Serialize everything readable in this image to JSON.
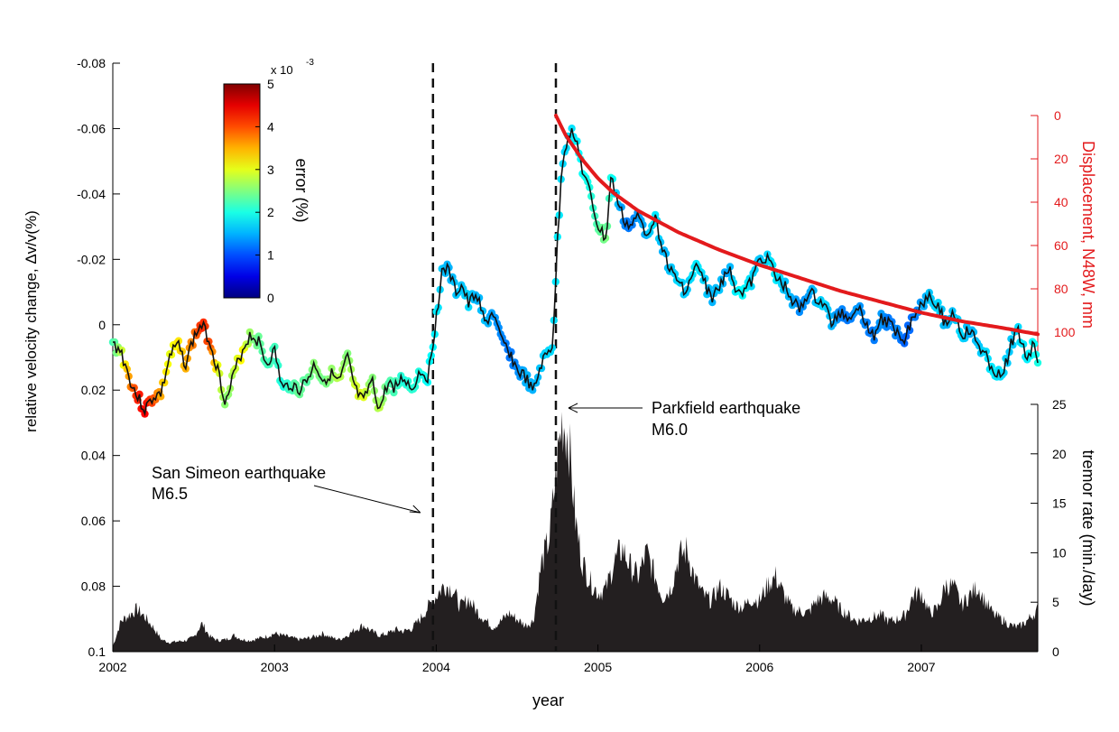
{
  "chart_data": {
    "type": "line",
    "xlabel": "year",
    "x_ticks": [
      "2002",
      "2003",
      "2004",
      "2005",
      "2006",
      "2007"
    ],
    "xlim": [
      2002.0,
      2007.72
    ],
    "left_axis": {
      "label": "relative velocity change, Δv/v(%)",
      "ylim": [
        -0.08,
        0.1
      ],
      "reversed": true,
      "ticks": [
        "-0.08",
        "-0.06",
        "-0.04",
        "-0.02",
        "0",
        "0.02",
        "0.04",
        "0.06",
        "0.08",
        "0.1"
      ]
    },
    "right_axis_displacement": {
      "label": "Displacement, N48W, mm",
      "color": "#e31a1c",
      "ylim": [
        0,
        110
      ],
      "ticks": [
        "0",
        "20",
        "40",
        "60",
        "80",
        "100"
      ]
    },
    "right_axis_tremor": {
      "label": "tremor rate (min./day)",
      "ylim": [
        0,
        25
      ],
      "ticks": [
        "0",
        "5",
        "10",
        "15",
        "20",
        "25"
      ]
    },
    "colorbar": {
      "label": "error (%)",
      "exponent": "x 10",
      "exponent_power": "-3",
      "range": [
        0,
        5
      ],
      "ticks": [
        "0",
        "1",
        "2",
        "3",
        "4",
        "5"
      ]
    },
    "annotations": [
      {
        "text": "San Simeon earthquake",
        "sub": "M6.5",
        "x": 2003.98
      },
      {
        "text": "Parkfield earthquake",
        "sub": "M6.0",
        "x": 2004.74
      }
    ],
    "series": [
      {
        "role": "velocity",
        "axis": "left",
        "color": "#111111",
        "points": [
          [
            2002.0,
            0.006,
            2.2
          ],
          [
            2002.05,
            0.008,
            2.8
          ],
          [
            2002.1,
            0.016,
            3.6
          ],
          [
            2002.15,
            0.022,
            4.2
          ],
          [
            2002.2,
            0.026,
            4.4
          ],
          [
            2002.25,
            0.022,
            4.0
          ],
          [
            2002.3,
            0.021,
            3.5
          ],
          [
            2002.35,
            0.01,
            3.0
          ],
          [
            2002.4,
            0.006,
            3.2
          ],
          [
            2002.45,
            0.012,
            3.5
          ],
          [
            2002.5,
            0.004,
            3.8
          ],
          [
            2002.55,
            0.0,
            4.2
          ],
          [
            2002.6,
            0.005,
            4.0
          ],
          [
            2002.65,
            0.014,
            3.0
          ],
          [
            2002.7,
            0.024,
            2.5
          ],
          [
            2002.75,
            0.015,
            2.8
          ],
          [
            2002.8,
            0.008,
            3.2
          ],
          [
            2002.85,
            0.003,
            2.6
          ],
          [
            2002.9,
            0.005,
            2.4
          ],
          [
            2002.95,
            0.012,
            2.2
          ],
          [
            2003.0,
            0.008,
            2.2
          ],
          [
            2003.05,
            0.02,
            2.0
          ],
          [
            2003.1,
            0.018,
            2.2
          ],
          [
            2003.15,
            0.02,
            2.4
          ],
          [
            2003.2,
            0.017,
            2.3
          ],
          [
            2003.25,
            0.012,
            2.6
          ],
          [
            2003.3,
            0.017,
            2.4
          ],
          [
            2003.35,
            0.015,
            2.6
          ],
          [
            2003.4,
            0.018,
            2.8
          ],
          [
            2003.45,
            0.01,
            2.5
          ],
          [
            2003.5,
            0.02,
            2.9
          ],
          [
            2003.55,
            0.024,
            3.0
          ],
          [
            2003.6,
            0.017,
            2.5
          ],
          [
            2003.65,
            0.026,
            2.8
          ],
          [
            2003.7,
            0.018,
            2.3
          ],
          [
            2003.75,
            0.019,
            2.2
          ],
          [
            2003.8,
            0.016,
            2.0
          ],
          [
            2003.85,
            0.02,
            2.1
          ],
          [
            2003.9,
            0.014,
            2.0
          ],
          [
            2003.95,
            0.016,
            1.9
          ],
          [
            2004.0,
            -0.002,
            1.8
          ],
          [
            2004.04,
            -0.018,
            1.6
          ],
          [
            2004.08,
            -0.016,
            1.5
          ],
          [
            2004.12,
            -0.01,
            1.6
          ],
          [
            2004.16,
            -0.012,
            1.6
          ],
          [
            2004.2,
            -0.006,
            1.7
          ],
          [
            2004.25,
            -0.01,
            1.5
          ],
          [
            2004.3,
            0.0,
            1.6
          ],
          [
            2004.35,
            -0.004,
            1.4
          ],
          [
            2004.4,
            0.005,
            1.3
          ],
          [
            2004.45,
            0.008,
            1.2
          ],
          [
            2004.5,
            0.014,
            1.3
          ],
          [
            2004.55,
            0.016,
            1.5
          ],
          [
            2004.6,
            0.021,
            1.5
          ],
          [
            2004.65,
            0.012,
            1.6
          ],
          [
            2004.7,
            0.008,
            1.7
          ],
          [
            2004.72,
            0.006,
            1.7
          ],
          [
            2004.75,
            -0.025,
            1.8
          ],
          [
            2004.78,
            -0.05,
            1.7
          ],
          [
            2004.82,
            -0.059,
            1.7
          ],
          [
            2004.86,
            -0.058,
            1.8
          ],
          [
            2004.9,
            -0.048,
            1.9
          ],
          [
            2004.95,
            -0.04,
            2.0
          ],
          [
            2005.0,
            -0.03,
            2.3
          ],
          [
            2005.05,
            -0.026,
            2.5
          ],
          [
            2005.08,
            -0.045,
            2.0
          ],
          [
            2005.12,
            -0.038,
            1.6
          ],
          [
            2005.16,
            -0.032,
            1.3
          ],
          [
            2005.2,
            -0.03,
            1.2
          ],
          [
            2005.25,
            -0.033,
            1.4
          ],
          [
            2005.3,
            -0.028,
            1.5
          ],
          [
            2005.35,
            -0.033,
            1.8
          ],
          [
            2005.4,
            -0.024,
            1.5
          ],
          [
            2005.45,
            -0.016,
            1.6
          ],
          [
            2005.5,
            -0.013,
            1.7
          ],
          [
            2005.55,
            -0.01,
            1.6
          ],
          [
            2005.6,
            -0.018,
            1.8
          ],
          [
            2005.65,
            -0.014,
            1.7
          ],
          [
            2005.7,
            -0.008,
            1.5
          ],
          [
            2005.75,
            -0.011,
            1.6
          ],
          [
            2005.8,
            -0.018,
            1.4
          ],
          [
            2005.85,
            -0.012,
            1.8
          ],
          [
            2005.9,
            -0.01,
            1.9
          ],
          [
            2005.95,
            -0.013,
            1.7
          ],
          [
            2006.0,
            -0.02,
            1.6
          ],
          [
            2006.05,
            -0.021,
            1.7
          ],
          [
            2006.1,
            -0.014,
            1.8
          ],
          [
            2006.15,
            -0.012,
            1.6
          ],
          [
            2006.2,
            -0.008,
            1.5
          ],
          [
            2006.25,
            -0.004,
            1.3
          ],
          [
            2006.3,
            -0.01,
            1.4
          ],
          [
            2006.35,
            -0.008,
            1.6
          ],
          [
            2006.4,
            -0.006,
            1.7
          ],
          [
            2006.45,
            0.0,
            1.5
          ],
          [
            2006.5,
            -0.004,
            1.3
          ],
          [
            2006.55,
            -0.002,
            1.2
          ],
          [
            2006.6,
            -0.006,
            1.4
          ],
          [
            2006.65,
            -0.002,
            1.3
          ],
          [
            2006.7,
            0.004,
            1.2
          ],
          [
            2006.75,
            -0.002,
            1.4
          ],
          [
            2006.8,
            0.0,
            1.2
          ],
          [
            2006.85,
            0.002,
            1.3
          ],
          [
            2006.9,
            0.004,
            1.1
          ],
          [
            2006.95,
            -0.003,
            1.2
          ],
          [
            2007.0,
            -0.006,
            1.4
          ],
          [
            2007.05,
            -0.01,
            1.6
          ],
          [
            2007.1,
            -0.006,
            1.7
          ],
          [
            2007.15,
            0.0,
            1.5
          ],
          [
            2007.2,
            -0.004,
            1.6
          ],
          [
            2007.25,
            0.003,
            1.7
          ],
          [
            2007.3,
            0.002,
            1.5
          ],
          [
            2007.35,
            0.006,
            1.6
          ],
          [
            2007.4,
            0.01,
            1.7
          ],
          [
            2007.45,
            0.014,
            1.8
          ],
          [
            2007.5,
            0.017,
            1.7
          ],
          [
            2007.55,
            0.006,
            1.6
          ],
          [
            2007.6,
            0.002,
            1.7
          ],
          [
            2007.65,
            0.01,
            1.8
          ],
          [
            2007.7,
            0.006,
            1.9
          ],
          [
            2007.72,
            0.01,
            2.0
          ]
        ]
      },
      {
        "role": "displacement",
        "axis": "right_displacement",
        "color": "#e31a1c",
        "points": [
          [
            2004.74,
            0
          ],
          [
            2004.8,
            9
          ],
          [
            2004.9,
            20
          ],
          [
            2005.0,
            29
          ],
          [
            2005.1,
            36
          ],
          [
            2005.25,
            44
          ],
          [
            2005.5,
            54
          ],
          [
            2005.75,
            62
          ],
          [
            2006.0,
            69
          ],
          [
            2006.25,
            75
          ],
          [
            2006.5,
            81
          ],
          [
            2006.75,
            86
          ],
          [
            2007.0,
            91
          ],
          [
            2007.25,
            95
          ],
          [
            2007.5,
            98
          ],
          [
            2007.72,
            101
          ]
        ]
      },
      {
        "role": "tremor",
        "axis": "right_tremor",
        "color": "#231f20",
        "points": [
          [
            2002.0,
            0.5
          ],
          [
            2002.05,
            3.0
          ],
          [
            2002.1,
            3.6
          ],
          [
            2002.15,
            4.2
          ],
          [
            2002.2,
            3.4
          ],
          [
            2002.25,
            2.4
          ],
          [
            2002.3,
            1.2
          ],
          [
            2002.35,
            0.9
          ],
          [
            2002.4,
            1.0
          ],
          [
            2002.45,
            1.1
          ],
          [
            2002.5,
            1.4
          ],
          [
            2002.55,
            2.8
          ],
          [
            2002.6,
            1.5
          ],
          [
            2002.65,
            1.1
          ],
          [
            2002.7,
            1.2
          ],
          [
            2002.75,
            1.6
          ],
          [
            2002.8,
            1.2
          ],
          [
            2002.85,
            1.1
          ],
          [
            2002.9,
            1.3
          ],
          [
            2002.95,
            1.5
          ],
          [
            2003.0,
            1.8
          ],
          [
            2003.05,
            1.6
          ],
          [
            2003.1,
            1.4
          ],
          [
            2003.15,
            1.2
          ],
          [
            2003.2,
            1.3
          ],
          [
            2003.25,
            1.5
          ],
          [
            2003.3,
            1.8
          ],
          [
            2003.35,
            1.4
          ],
          [
            2003.4,
            1.2
          ],
          [
            2003.45,
            1.6
          ],
          [
            2003.5,
            2.2
          ],
          [
            2003.55,
            2.6
          ],
          [
            2003.6,
            2.0
          ],
          [
            2003.65,
            1.6
          ],
          [
            2003.7,
            1.8
          ],
          [
            2003.75,
            2.2
          ],
          [
            2003.8,
            2.0
          ],
          [
            2003.85,
            2.3
          ],
          [
            2003.9,
            3.2
          ],
          [
            2003.95,
            4.4
          ],
          [
            2004.0,
            5.5
          ],
          [
            2004.05,
            6.6
          ],
          [
            2004.1,
            6.2
          ],
          [
            2004.15,
            4.4
          ],
          [
            2004.2,
            5.2
          ],
          [
            2004.25,
            4.0
          ],
          [
            2004.3,
            3.2
          ],
          [
            2004.35,
            2.4
          ],
          [
            2004.4,
            3.0
          ],
          [
            2004.45,
            3.8
          ],
          [
            2004.5,
            3.2
          ],
          [
            2004.55,
            2.6
          ],
          [
            2004.6,
            3.0
          ],
          [
            2004.65,
            8.6
          ],
          [
            2004.7,
            11.2
          ],
          [
            2004.75,
            19.0
          ],
          [
            2004.78,
            23.0
          ],
          [
            2004.82,
            21.0
          ],
          [
            2004.86,
            13.0
          ],
          [
            2004.9,
            9.0
          ],
          [
            2004.95,
            7.0
          ],
          [
            2005.0,
            5.8
          ],
          [
            2005.05,
            6.2
          ],
          [
            2005.1,
            8.8
          ],
          [
            2005.15,
            10.2
          ],
          [
            2005.2,
            8.4
          ],
          [
            2005.25,
            7.4
          ],
          [
            2005.3,
            9.8
          ],
          [
            2005.35,
            7.6
          ],
          [
            2005.4,
            5.4
          ],
          [
            2005.45,
            6.2
          ],
          [
            2005.5,
            9.4
          ],
          [
            2005.55,
            10.0
          ],
          [
            2005.6,
            7.2
          ],
          [
            2005.65,
            5.6
          ],
          [
            2005.7,
            5.0
          ],
          [
            2005.75,
            6.4
          ],
          [
            2005.8,
            5.6
          ],
          [
            2005.85,
            4.6
          ],
          [
            2005.9,
            4.4
          ],
          [
            2005.95,
            5.2
          ],
          [
            2006.0,
            5.0
          ],
          [
            2006.05,
            6.6
          ],
          [
            2006.1,
            7.4
          ],
          [
            2006.15,
            5.6
          ],
          [
            2006.2,
            4.2
          ],
          [
            2006.25,
            4.0
          ],
          [
            2006.3,
            3.8
          ],
          [
            2006.35,
            5.0
          ],
          [
            2006.4,
            5.4
          ],
          [
            2006.45,
            5.2
          ],
          [
            2006.5,
            4.2
          ],
          [
            2006.55,
            3.6
          ],
          [
            2006.6,
            3.0
          ],
          [
            2006.65,
            3.2
          ],
          [
            2006.7,
            3.4
          ],
          [
            2006.75,
            3.6
          ],
          [
            2006.8,
            3.0
          ],
          [
            2006.85,
            3.2
          ],
          [
            2006.9,
            3.6
          ],
          [
            2006.95,
            5.6
          ],
          [
            2007.0,
            5.8
          ],
          [
            2007.05,
            3.8
          ],
          [
            2007.1,
            4.2
          ],
          [
            2007.15,
            6.6
          ],
          [
            2007.2,
            6.4
          ],
          [
            2007.25,
            4.6
          ],
          [
            2007.3,
            5.6
          ],
          [
            2007.35,
            6.4
          ],
          [
            2007.4,
            4.8
          ],
          [
            2007.45,
            3.6
          ],
          [
            2007.5,
            3.2
          ],
          [
            2007.55,
            2.6
          ],
          [
            2007.6,
            2.4
          ],
          [
            2007.65,
            3.0
          ],
          [
            2007.7,
            3.8
          ],
          [
            2007.72,
            4.2
          ]
        ]
      }
    ]
  }
}
